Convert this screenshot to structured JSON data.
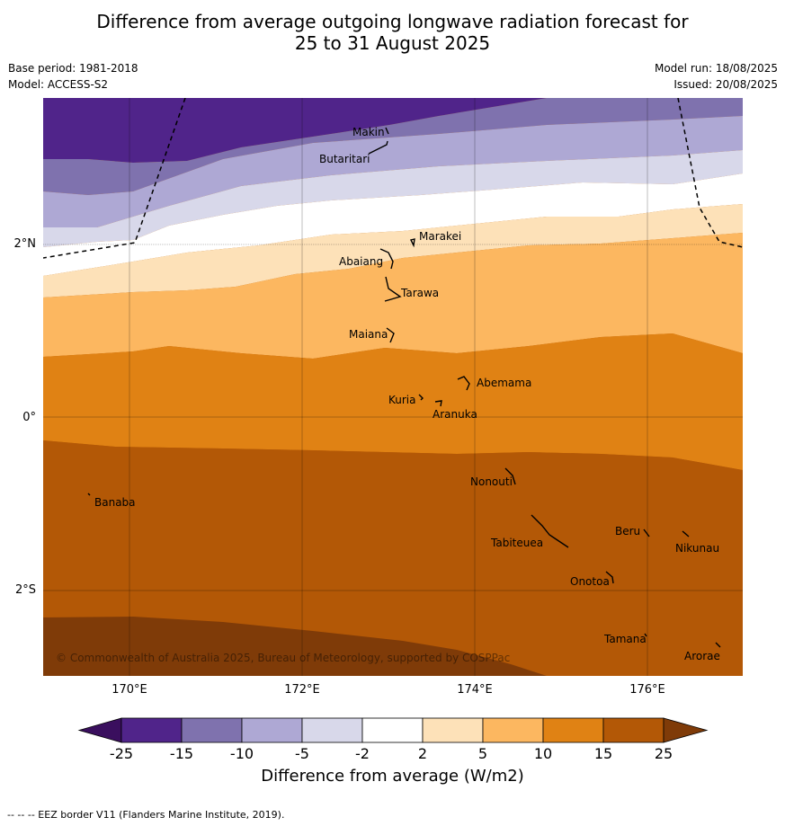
{
  "title_line1": "Difference from average outgoing longwave radiation forecast for",
  "title_line2": "25 to 31 August 2025",
  "base_period": "Base period: 1981-2018",
  "model": "Model: ACCESS-S2",
  "model_run": "Model run: 18/08/2025",
  "issued": "Issued: 20/08/2025",
  "lat_labels": [
    "2°N",
    "0°",
    "2°S"
  ],
  "lon_labels": [
    "170°E",
    "172°E",
    "174°E",
    "176°E"
  ],
  "places": [
    "Makin",
    "Butaritari",
    "Marakei",
    "Abaiang",
    "Tarawa",
    "Maiana",
    "Abemama",
    "Kuria",
    "Aranuka",
    "Nonouti",
    "Banaba",
    "Beru",
    "Nikunau",
    "Tabiteuea",
    "Onotoa",
    "Tamana",
    "Arorae"
  ],
  "copyright": "© Commonwealth of Australia 2025, Bureau of Meteorology, supported by COSPPac",
  "colorbar": {
    "title": "Difference from average (W/m2)",
    "ticks": [
      "-25",
      "-15",
      "-10",
      "-5",
      "-2",
      "2",
      "5",
      "10",
      "15",
      "25"
    ],
    "colors": [
      "#3a0f5e",
      "#50248a",
      "#7f72ae",
      "#aea8d4",
      "#d8d8ea",
      "#ffffff",
      "#fde1b8",
      "#fcb760",
      "#e08214",
      "#b35806",
      "#7f3b08"
    ]
  },
  "footer": "-- -- -- EEZ border V11 (Flanders Marine Institute, 2019)."
}
